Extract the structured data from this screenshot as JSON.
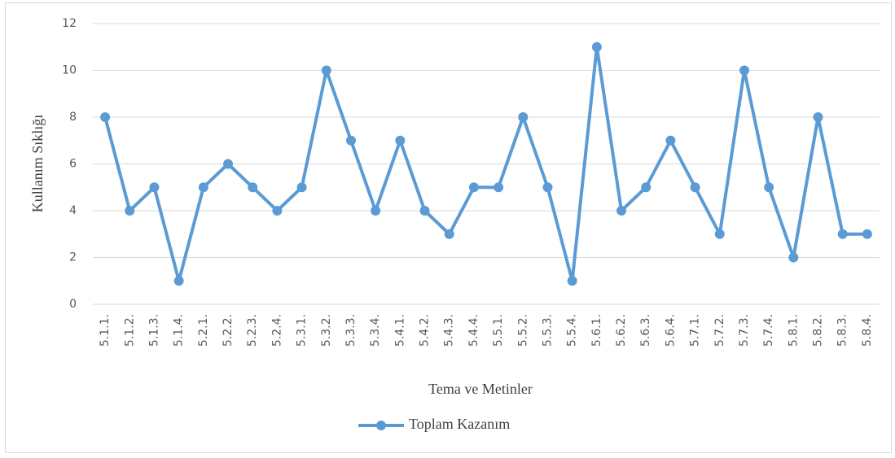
{
  "chart_data": {
    "type": "line",
    "x_label": "Tema ve Metinler",
    "y_label": "Kullanım Sıklığı",
    "categories": [
      "5.1.1.",
      "5.1.2.",
      "5.1.3.",
      "5.1.4.",
      "5.2.1.",
      "5.2.2.",
      "5.2.3.",
      "5.2.4.",
      "5.3.1.",
      "5.3.2.",
      "5.3.3.",
      "5.3.4.",
      "5.4.1.",
      "5.4.2.",
      "5.4.3.",
      "5.4.4.",
      "5.5.1.",
      "5.5.2.",
      "5.5.3.",
      "5.5.4.",
      "5.6.1.",
      "5.6.2.",
      "5.6.3.",
      "5.6.4.",
      "5.7.1.",
      "5.7.2.",
      "5.7.3.",
      "5.7.4.",
      "5.8.1.",
      "5.8.2.",
      "5.8.3.",
      "5.8.4."
    ],
    "series": [
      {
        "name": "Toplam Kazanım",
        "color": "#5b9bd5",
        "values": [
          8,
          4,
          5,
          1,
          5,
          6,
          5,
          4,
          5,
          10,
          7,
          4,
          7,
          4,
          3,
          5,
          5,
          8,
          5,
          1,
          11,
          4,
          5,
          7,
          5,
          3,
          10,
          5,
          2,
          8,
          3,
          3
        ]
      }
    ],
    "ylim": [
      0,
      12
    ],
    "yticks": [
      0,
      2,
      4,
      6,
      8,
      10,
      12
    ],
    "grid": true,
    "legend": "bottom"
  }
}
